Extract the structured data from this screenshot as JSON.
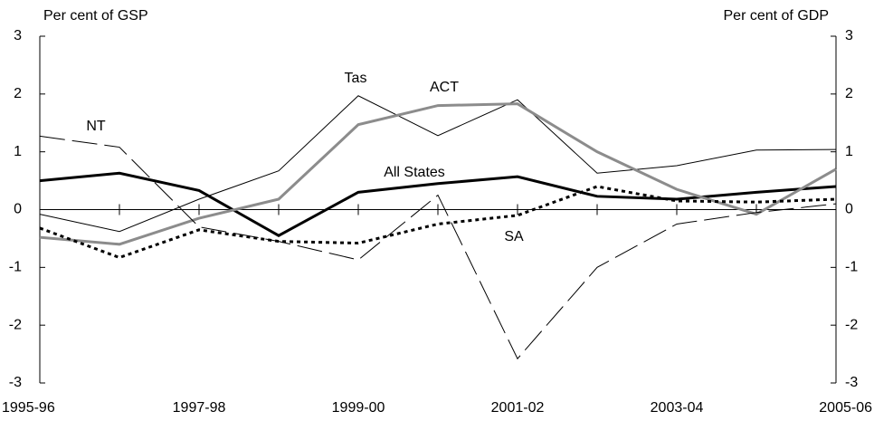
{
  "chart_data": {
    "type": "line",
    "y_label": "Per cent of GSP",
    "y2_label": "Per cent of GDP",
    "categories": [
      "1995-96",
      null,
      "1997-98",
      null,
      "1999-00",
      null,
      "2001-02",
      null,
      "2003-04",
      null,
      "2005-06"
    ],
    "series": [
      {
        "name": "All States",
        "color": "#000000",
        "width": 3,
        "dash": "solid",
        "values": [
          0.5,
          0.63,
          0.33,
          -0.45,
          0.3,
          0.45,
          0.57,
          0.23,
          0.18,
          0.3,
          0.4
        ]
      },
      {
        "name": "Tas",
        "color": "#000000",
        "width": 1,
        "dash": "solid",
        "values": [
          -0.08,
          -0.38,
          0.18,
          0.67,
          1.97,
          1.28,
          1.9,
          0.63,
          0.76,
          1.03,
          1.04
        ]
      },
      {
        "name": "ACT",
        "color": "#8c8c8c",
        "width": 3,
        "dash": "solid",
        "values": [
          -0.48,
          -0.6,
          -0.15,
          0.18,
          1.47,
          1.8,
          1.83,
          1.0,
          0.35,
          -0.08,
          0.7
        ]
      },
      {
        "name": "NT",
        "color": "#000000",
        "width": 1,
        "dash": "long-dash",
        "values": [
          1.27,
          1.08,
          -0.3,
          -0.55,
          -0.87,
          0.25,
          -2.58,
          -1.0,
          -0.25,
          -0.05,
          0.1
        ]
      },
      {
        "name": "SA",
        "color": "#000000",
        "width": 3,
        "dash": "dotted",
        "values": [
          -0.32,
          -0.83,
          -0.35,
          -0.55,
          -0.58,
          -0.25,
          -0.1,
          0.4,
          0.15,
          0.13,
          0.18
        ]
      }
    ],
    "ylim": [
      -3,
      3
    ],
    "yticks": [
      -3,
      -2,
      -1,
      0,
      1,
      2,
      3
    ],
    "y2lim": [
      -3,
      3
    ],
    "y2ticks": [
      -3,
      -2,
      -1,
      0,
      1,
      2,
      3
    ]
  }
}
